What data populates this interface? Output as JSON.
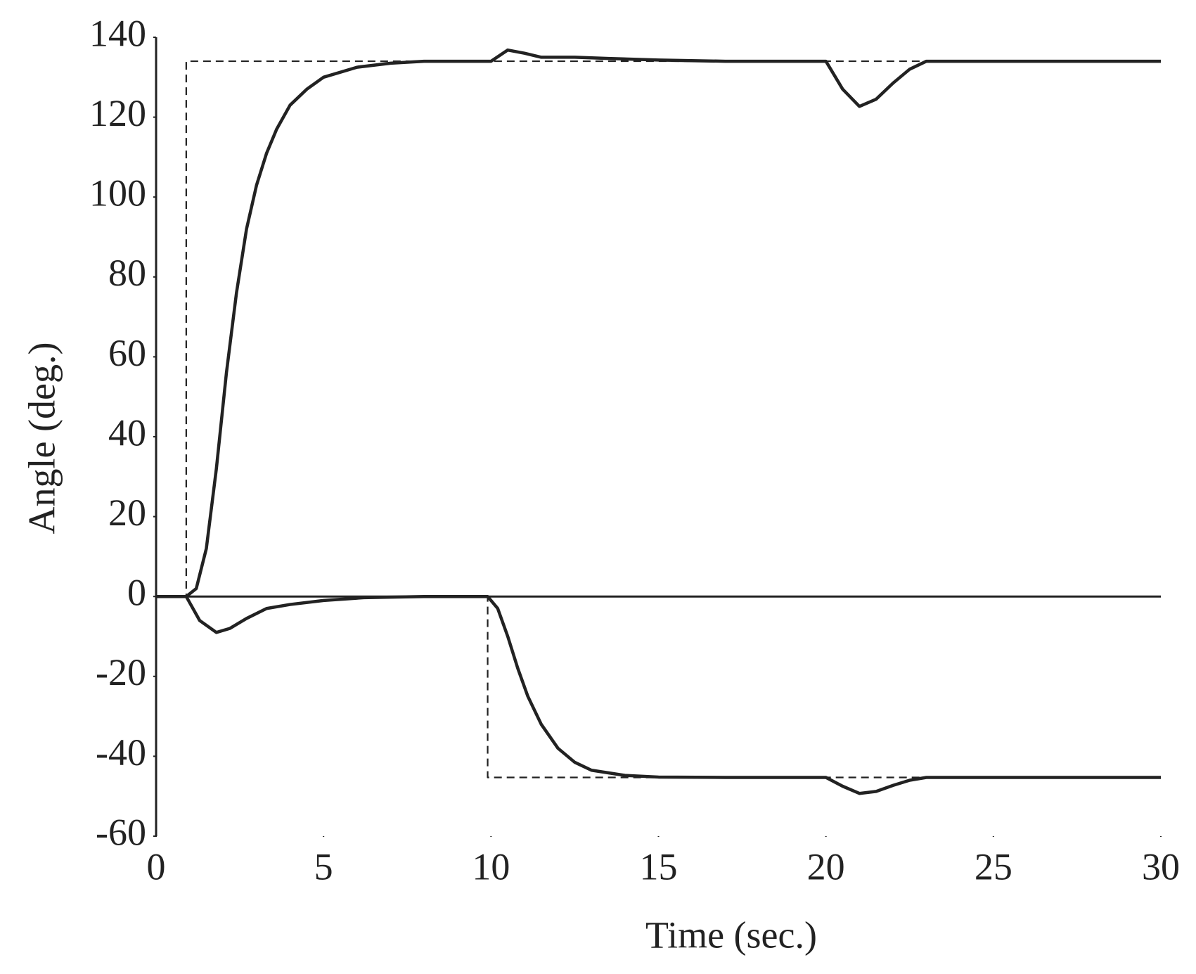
{
  "chart_data": {
    "type": "line",
    "x_label": "Time (sec.)",
    "y_label": "Angle (deg.)",
    "xlim": [
      0,
      30
    ],
    "ylim": [
      -60,
      140
    ],
    "xticks": [
      0,
      5,
      10,
      15,
      20,
      25,
      30
    ],
    "yticks": [
      -60,
      -40,
      -20,
      0,
      20,
      40,
      60,
      80,
      100,
      120,
      140
    ],
    "grid": false,
    "series": [
      {
        "color": "#222222",
        "style": "dashed",
        "x": [
          0,
          0.9,
          0.9,
          30
        ],
        "values": [
          0,
          0,
          134,
          134
        ]
      },
      {
        "color": "#222222",
        "style": "dashed",
        "x": [
          0,
          9.9,
          9.9,
          30
        ],
        "values": [
          0,
          0,
          -45.3,
          -45.3
        ]
      },
      {
        "color": "#222222",
        "style": "solid",
        "x": [
          0,
          0.9,
          1.2,
          1.5,
          1.8,
          2.1,
          2.4,
          2.7,
          3.0,
          3.3,
          3.6,
          4.0,
          4.5,
          5,
          6,
          7,
          8,
          10,
          10.5,
          11,
          11.5,
          12.5,
          13.5,
          15,
          17,
          20,
          20.5,
          21,
          21.5,
          22,
          22.5,
          23,
          30
        ],
        "values": [
          0,
          0,
          2,
          12,
          32,
          56,
          76,
          92,
          103,
          111,
          117,
          123,
          127,
          130,
          132.5,
          133.5,
          134,
          134,
          136.8,
          136,
          135,
          135,
          134.7,
          134.3,
          134,
          134,
          127,
          122.7,
          124.5,
          128.5,
          132,
          134,
          134
        ]
      },
      {
        "color": "#222222",
        "style": "solid",
        "x": [
          0,
          0.9,
          1.3,
          1.8,
          2.2,
          2.7,
          3.3,
          4,
          5,
          6.2,
          8,
          9.9,
          10.2,
          10.5,
          10.8,
          11.1,
          11.5,
          12,
          12.5,
          13,
          14,
          15,
          17,
          20,
          20.5,
          21,
          21.5,
          22,
          22.5,
          23,
          30
        ],
        "values": [
          0,
          0,
          -6,
          -9,
          -8,
          -5.5,
          -3,
          -2,
          -1,
          -0.3,
          0,
          0,
          -3,
          -10,
          -18,
          -25,
          -32,
          -38,
          -41.5,
          -43.5,
          -44.8,
          -45.2,
          -45.3,
          -45.3,
          -47.5,
          -49.3,
          -48.8,
          -47.3,
          -46,
          -45.3,
          -45.3
        ]
      }
    ]
  }
}
